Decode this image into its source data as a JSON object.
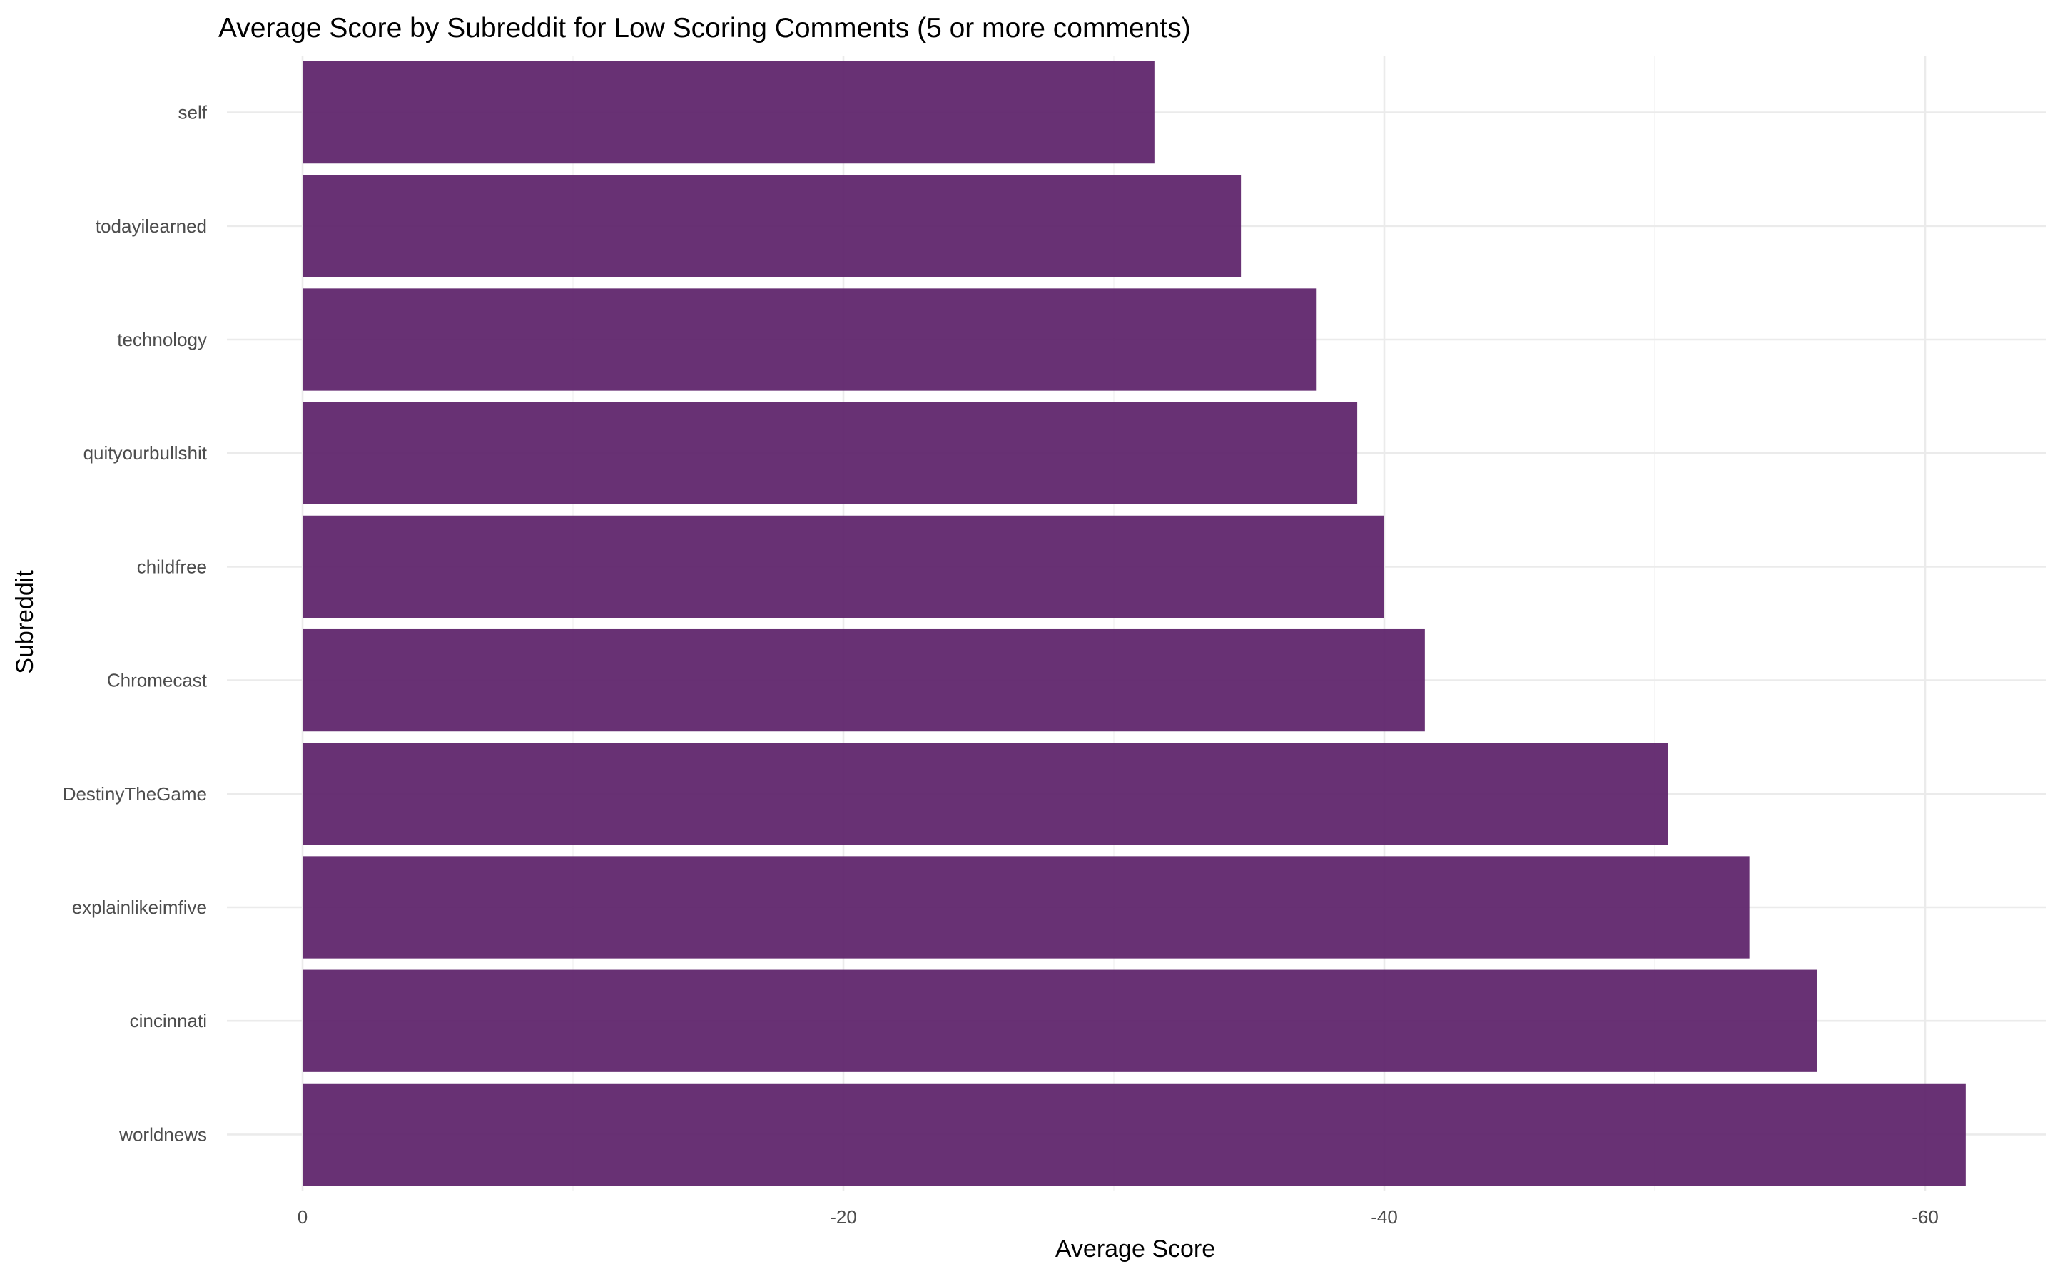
{
  "chart_data": {
    "type": "bar",
    "orientation": "horizontal",
    "title": "Average Score by Subreddit for Low Scoring Comments (5 or more comments)",
    "xlabel": "Average Score",
    "ylabel": "Subreddit",
    "categories": [
      "self",
      "todayilearned",
      "technology",
      "quityourbullshit",
      "childfree",
      "Chromecast",
      "DestinyTheGame",
      "explainlikeimfive",
      "cincinnati",
      "worldnews"
    ],
    "values": [
      -31.5,
      -34.7,
      -37.5,
      -39.0,
      -40.0,
      -41.5,
      -50.5,
      -53.5,
      -56.0,
      -61.5
    ],
    "xlim": [
      0,
      -63.5
    ],
    "x_ticks": [
      0,
      -20,
      -40,
      -60
    ],
    "x_tick_labels": [
      "0",
      "-20",
      "-40",
      "-60"
    ],
    "x_minor_ticks": [
      -10,
      -30,
      -50
    ],
    "bar_color": "#5b2068",
    "bar_opacity": 0.92,
    "grid": true,
    "legend": "none"
  }
}
